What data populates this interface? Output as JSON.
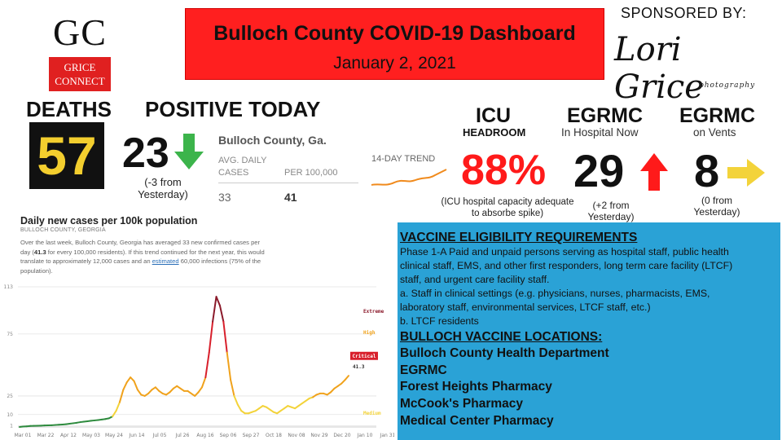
{
  "header": {
    "logo_top": "GC",
    "logo_bottom_1": "GRICE",
    "logo_bottom_2": "CONNECT",
    "title": "Bulloch County COVID-19 Dashboard",
    "date": "January 2, 2021",
    "sponsor_label": "SPONSORED BY:",
    "sponsor_name": "Lori Grice",
    "sponsor_sub": "photography",
    "brand_red": "#ff1f1f"
  },
  "deaths": {
    "label": "DEATHS",
    "value": "57",
    "value_color": "#f3ce2e"
  },
  "positive_today": {
    "label": "POSITIVE TODAY",
    "value": "23",
    "trend": "down",
    "change": "(-3 from Yesterday)",
    "arrow_color": "#3cb44b"
  },
  "county_stats": {
    "name": "Bulloch County, Ga.",
    "avg_header": "AVG. DAILY CASES",
    "per_header": "PER 100,000",
    "avg_value": "33",
    "per_value": "41",
    "trend_label": "14-DAY TREND"
  },
  "icu": {
    "title": "ICU",
    "subtitle": "HEADROOM",
    "value": "88%",
    "note": "(ICU hospital capacity adequate to absorbe spike)",
    "value_color": "#ff1a1a"
  },
  "egrmc_hospital": {
    "title": "EGRMC",
    "subtitle": "In Hospital Now",
    "value": "29",
    "trend": "up",
    "change": "(+2 from Yesterday)",
    "arrow_color": "#ff1a1a"
  },
  "egrmc_vents": {
    "title": "EGRMC",
    "subtitle": "on Vents",
    "value": "8",
    "trend": "flat",
    "change": "(0 from Yesterday)",
    "arrow_color": "#f3d33a"
  },
  "chart_intro": {
    "title": "Daily new cases per 100k population",
    "subtitle": "BULLOCH COUNTY, GEORGIA",
    "desc_1": "Over the last week, Bulloch County, Georgia has averaged 33 new confirmed cases per day (",
    "desc_hl": "41.3",
    "desc_2": " for every 100,000 residents). If this trend continued for the next year, this would translate to approximately 12,000 cases and an ",
    "desc_link": "estimated",
    "desc_3": " 60,000 infections (75% of the population)."
  },
  "vaccine": {
    "heading": "VACCINE ELIGIBILITY REQUIREMENTS",
    "lines": [
      "Phase 1-A Paid and unpaid persons serving as hospital staff, public health",
      "clinical staff, EMS, and other first responders, long term care facility (LTCF)",
      "staff, and urgent care facility staff.",
      "a. Staff in clinical settings (e.g. physicians, nurses, pharmacists, EMS,",
      "laboratory staff, environmental services, LTCF staff, etc.)",
      "b. LTCF residents"
    ],
    "locations_heading": "BULLOCH VACCINE LOCATIONS:",
    "locations": [
      "Bulloch County Health Department",
      "EGRMC",
      "Forest Heights Pharmacy",
      "McCook's Pharmacy",
      "Medical Center Pharmacy"
    ],
    "panel_color": "#2aa2d6"
  },
  "chart_data": {
    "type": "line",
    "title": "Daily new cases per 100k population",
    "subtitle": "BULLOCH COUNTY, GEORGIA",
    "x_ticks": [
      "Mar 01",
      "Mar 22",
      "Apr 12",
      "May 03",
      "May 24",
      "Jun 14",
      "Jul 05",
      "Jul 26",
      "Aug 16",
      "Sep 06",
      "Sep 27",
      "Oct 18",
      "Nov 08",
      "Nov 29",
      "Dec 20",
      "Jan 10",
      "Jan 31"
    ],
    "y_ticks": [
      1,
      10,
      25,
      75,
      113
    ],
    "ylim": [
      0,
      113
    ],
    "zones": [
      {
        "name": "Extreme",
        "threshold": 75,
        "color": "#8b1a2b"
      },
      {
        "name": "Critical",
        "threshold": 50,
        "color": "#d8202c"
      },
      {
        "name": "High",
        "threshold": 25,
        "color": "#f0a21c"
      },
      {
        "name": "Medium",
        "threshold": 10,
        "color": "#f3d33a"
      },
      {
        "name": "Low",
        "threshold": 1,
        "color": "#2e8b3e"
      }
    ],
    "current_label": "Critical",
    "current_value": "41.3",
    "series": [
      {
        "values": [
          0,
          0.3,
          0.5,
          0.8,
          0.9,
          1.0,
          1.1,
          1.2,
          1.3,
          1.4,
          1.6,
          1.8,
          2.0,
          2.2,
          2.6,
          3.0,
          3.4,
          3.9,
          4.3,
          4.6,
          5.0,
          5.3,
          5.6,
          6.0,
          6.4,
          7.0,
          8.5,
          13,
          20,
          30,
          36,
          40,
          37,
          30,
          26,
          25,
          27,
          30,
          32,
          29,
          27,
          26,
          28,
          31,
          33,
          31,
          29,
          29,
          27,
          25,
          28,
          32,
          40,
          60,
          85,
          105,
          98,
          85,
          60,
          38,
          25,
          18,
          13,
          11,
          11,
          12,
          13,
          15,
          17,
          16,
          14,
          12,
          11,
          13,
          15,
          17,
          16,
          15,
          17,
          19,
          21,
          23,
          24,
          26,
          27,
          27,
          26,
          28,
          31,
          33,
          35,
          38,
          41.3
        ]
      }
    ]
  }
}
